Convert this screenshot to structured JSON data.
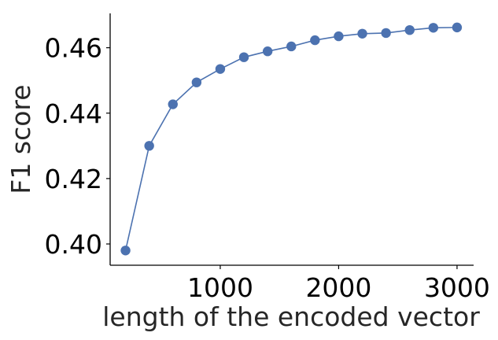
{
  "chart_data": {
    "type": "line",
    "title": "",
    "xlabel": "length of the encoded vector",
    "ylabel": "F1 score",
    "xlim": [
      70,
      3140
    ],
    "ylim": [
      0.3935,
      0.4705
    ],
    "xticks": [
      1000,
      2000,
      3000
    ],
    "yticks": [
      0.4,
      0.42,
      0.44,
      0.46
    ],
    "xtick_labels": [
      "1000",
      "2000",
      "3000"
    ],
    "ytick_labels": [
      "0.40",
      "0.42",
      "0.44",
      "0.46"
    ],
    "grid": false,
    "legend": "none",
    "series": [
      {
        "color": "#4c72b0",
        "marker": "circle",
        "x": [
          200,
          400,
          600,
          800,
          1000,
          1200,
          1400,
          1600,
          1800,
          2000,
          2200,
          2400,
          2600,
          2800,
          3000
        ],
        "y": [
          0.398,
          0.43,
          0.4427,
          0.4494,
          0.4535,
          0.4571,
          0.4589,
          0.4604,
          0.4623,
          0.4635,
          0.4643,
          0.4645,
          0.4654,
          0.4661,
          0.4662
        ]
      }
    ]
  }
}
